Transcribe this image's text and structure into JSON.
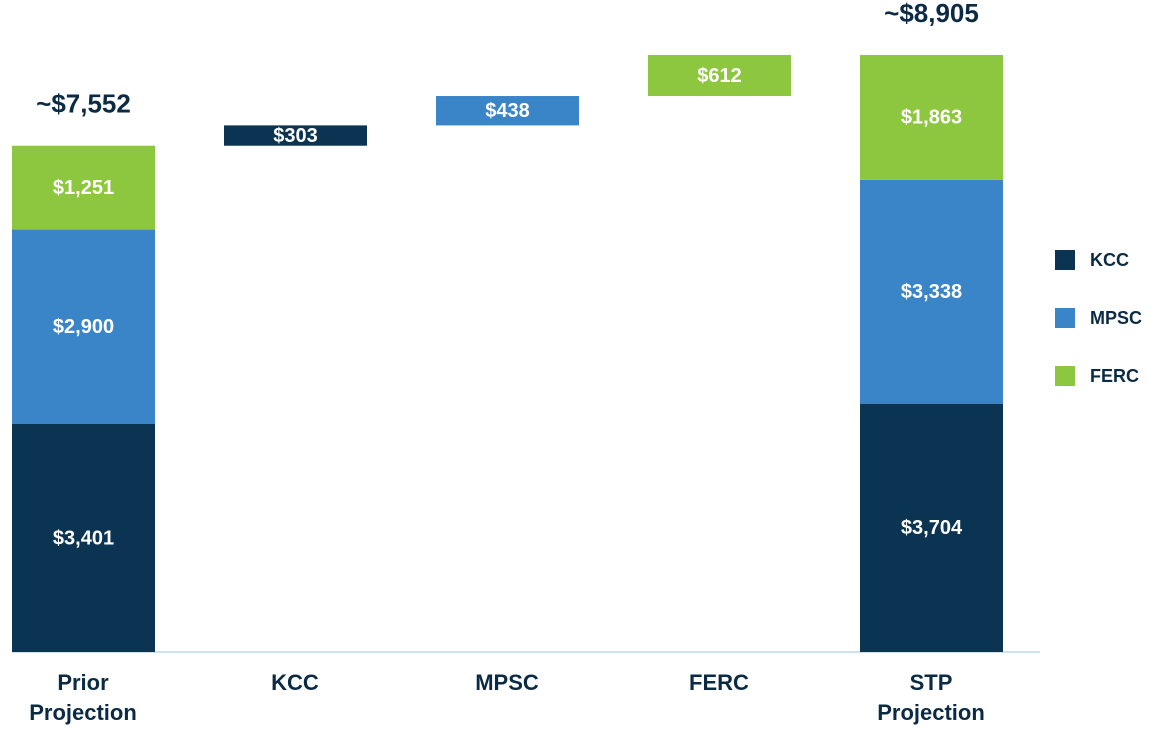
{
  "chart_data": {
    "type": "waterfall",
    "categories": [
      "Prior Projection",
      "KCC",
      "MPSC",
      "FERC",
      "STP Projection"
    ],
    "series": [
      {
        "name": "KCC",
        "color": "#0b3352",
        "values": [
          3401,
          303,
          null,
          null,
          3704
        ],
        "value_labels": [
          "$3,401",
          "$303",
          null,
          null,
          "$3,704"
        ]
      },
      {
        "name": "MPSC",
        "color": "#3a84c8",
        "values": [
          2900,
          null,
          438,
          null,
          3338
        ],
        "value_labels": [
          "$2,900",
          null,
          "$438",
          null,
          "$3,338"
        ]
      },
      {
        "name": "FERC",
        "color": "#8dc63f",
        "values": [
          1251,
          null,
          null,
          612,
          1863
        ],
        "value_labels": [
          "$1,251",
          null,
          null,
          "$612",
          "$1,863"
        ]
      }
    ],
    "totals": [
      7552,
      null,
      null,
      null,
      8905
    ],
    "total_labels": [
      "~$7,552",
      null,
      null,
      null,
      "~$8,905"
    ],
    "legend": "right"
  }
}
